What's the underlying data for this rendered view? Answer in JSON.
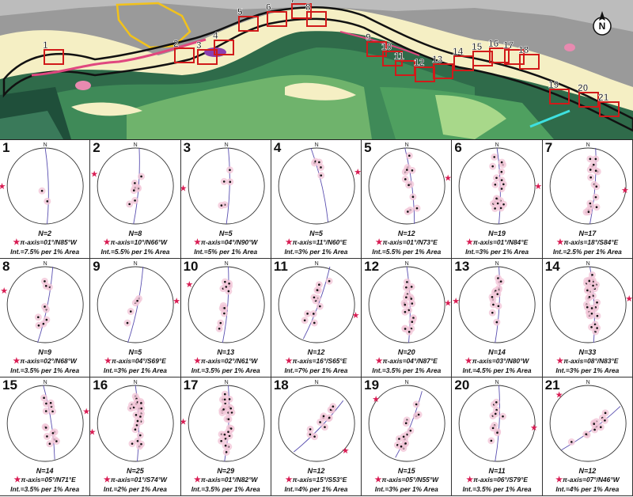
{
  "map": {
    "site_labels": [
      "1",
      "2",
      "3",
      "4",
      "5",
      "6",
      "7",
      "8",
      "9",
      "10",
      "11",
      "12",
      "13",
      "14",
      "15",
      "16",
      "17",
      "18",
      "19",
      "20",
      "21"
    ],
    "north_label": "N",
    "colors": {
      "dark_green": "#2f6b4a",
      "mid_green": "#4a9a5a",
      "light_green": "#7cc06a",
      "lime": "#a8d88a",
      "cream": "#f5efc4",
      "grey": "#8a8a8a",
      "magenta": "#e0477f",
      "yellow": "#f2c21b",
      "purple": "#8b3fb0",
      "red_box": "#d11a1a"
    }
  },
  "plots": [
    {
      "num": "1",
      "N": "N=2",
      "axis": "π-axis=01°/N85°W",
      "int": "Int.=7.5% per 1% Area"
    },
    {
      "num": "2",
      "N": "N=8",
      "axis": "π-axis=10°/N66°W",
      "int": "Int.=5.5% per 1% Area"
    },
    {
      "num": "3",
      "N": "N=5",
      "axis": "π-axis=04°/N90°W",
      "int": "Int.=5% per 1% Area"
    },
    {
      "num": "4",
      "N": "N=5",
      "axis": "π-axis=11°/N60°E",
      "int": "Int.=3% per 1% Area"
    },
    {
      "num": "5",
      "N": "N=12",
      "axis": "π-axis=01°/N73°E",
      "int": "Int.=5.5% per 1% Area"
    },
    {
      "num": "6",
      "N": "N=19",
      "axis": "π-axis=01°/N84°E",
      "int": "Int.=3% per 1% Area"
    },
    {
      "num": "7",
      "N": "N=17",
      "axis": "π-axis=18°/S84°E",
      "int": "Int.=2.5% per 1% Area"
    },
    {
      "num": "8",
      "N": "N=9",
      "axis": "π-axis=02°/N68°W",
      "int": "Int.=3.5% per 1% Area"
    },
    {
      "num": "9",
      "N": "N=5",
      "axis": "π-axis=04°/S69°E",
      "int": "Int.=3% per 1% Area"
    },
    {
      "num": "10",
      "N": "N=13",
      "axis": "π-axis=02°/N61°W",
      "int": "Int.=3.5% per 1% Area"
    },
    {
      "num": "11",
      "N": "N=12",
      "axis": "π-axis=16°/S65°E",
      "int": "Int.=7% per 1% Area"
    },
    {
      "num": "12",
      "N": "N=20",
      "axis": "π-axis=04°/N87°E",
      "int": "Int.=3.5% per 1% Area"
    },
    {
      "num": "13",
      "N": "N=14",
      "axis": "π-axis=03°/N80°W",
      "int": "Int.=4.5% per 1% Area"
    },
    {
      "num": "14",
      "N": "N=33",
      "axis": "π-axis=08°/N83°E",
      "int": "Int.=3% per 1% Area"
    },
    {
      "num": "15",
      "N": "N=14",
      "axis": "π-axis=05°/N71°E",
      "int": "Int.=3.5% per 1% Area"
    },
    {
      "num": "16",
      "N": "N=25",
      "axis": "π-axis=01°/S74°W",
      "int": "Int.=2% per 1% Area"
    },
    {
      "num": "17",
      "N": "N=29",
      "axis": "π-axis=01°/N82°W",
      "int": "Int.=3.5% per 1% Area"
    },
    {
      "num": "18",
      "N": "N=12",
      "axis": "π-axis=15°/S53°E",
      "int": "Int.=4% per 1% Area"
    },
    {
      "num": "19",
      "N": "N=15",
      "axis": "π-axis=05°/N55°W",
      "int": "Int.=3% per 1% Area"
    },
    {
      "num": "20",
      "N": "N=11",
      "axis": "π-axis=06°/S79°E",
      "int": "Int.=3.5% per 1% Area"
    },
    {
      "num": "21",
      "N": "N=12",
      "axis": "π-axis=07°/N46°W",
      "int": "Int.=4% per 1% Area"
    }
  ],
  "stereonet_north_label": "N",
  "star_symbol": "★"
}
